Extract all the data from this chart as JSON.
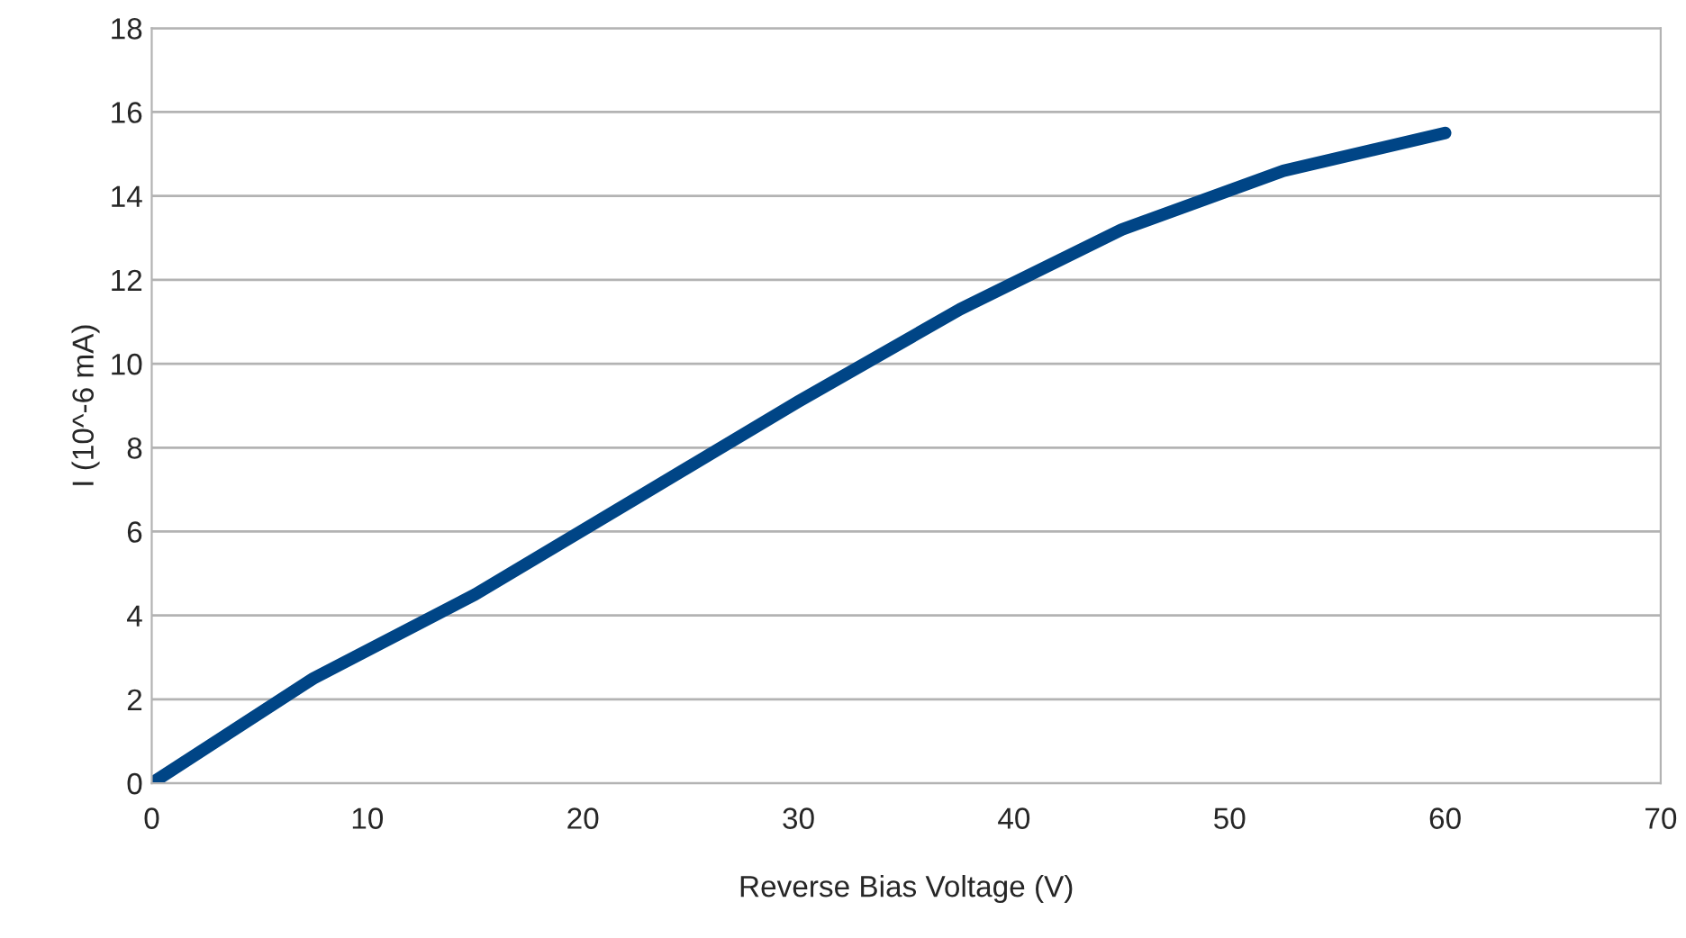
{
  "chart_data": {
    "type": "line",
    "xlabel": "Reverse Bias Voltage (V)",
    "ylabel": "I (10^-6 mA)",
    "x": [
      0,
      7.5,
      15,
      22.5,
      30,
      37.5,
      45,
      52.5,
      60
    ],
    "series": [
      {
        "color": "#004586",
        "values": [
          0,
          2.5,
          4.5,
          6.8,
          9.1,
          11.3,
          13.2,
          14.6,
          15.5
        ]
      }
    ],
    "xlim": [
      0,
      70
    ],
    "xticks": [
      0,
      10,
      20,
      30,
      40,
      50,
      60,
      70
    ],
    "ylim": [
      0,
      18
    ],
    "yticks": [
      0,
      2,
      4,
      6,
      8,
      10,
      12,
      14,
      16,
      18
    ],
    "grid": "y",
    "legend": false,
    "marker": "none",
    "line_style": "solid"
  }
}
